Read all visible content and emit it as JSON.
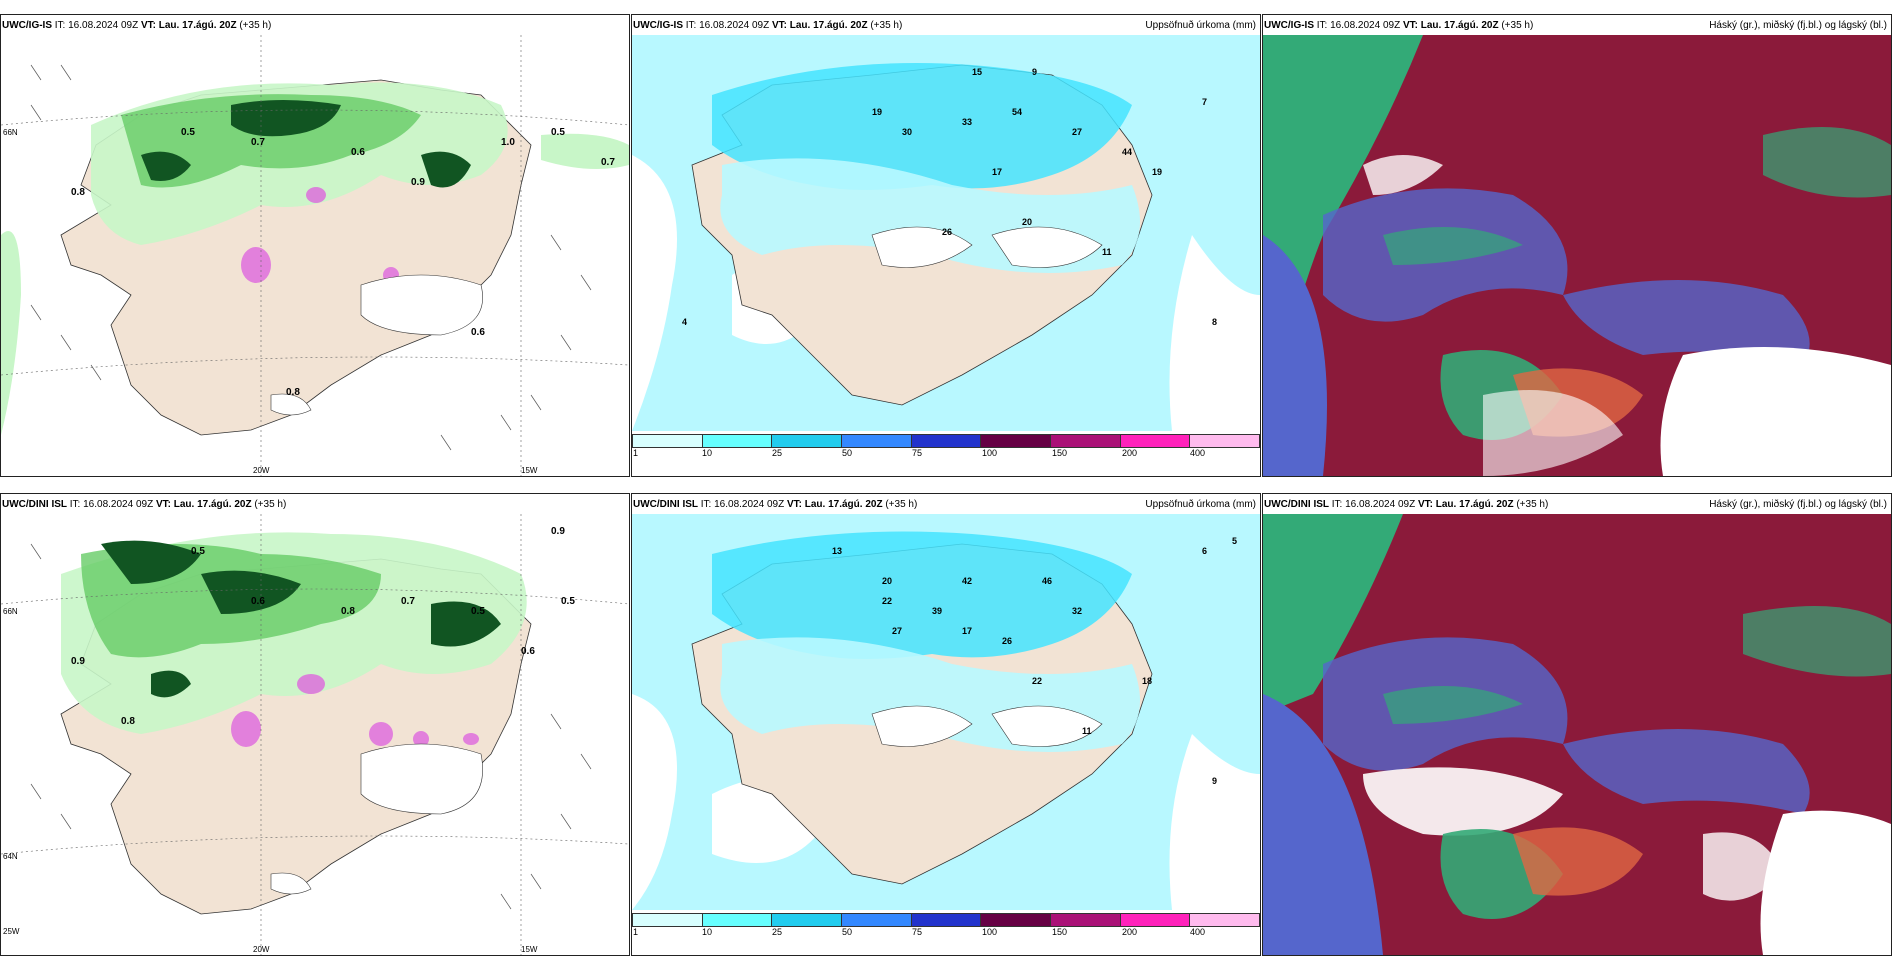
{
  "panels": [
    {
      "model": "UWC/IG-IS",
      "it": "16.08.2024 09Z",
      "vt": "Lau. 17.ágú. 20Z",
      "lead": "(+35 h)",
      "title": ""
    },
    {
      "model": "UWC/IG-IS",
      "it": "16.08.2024 09Z",
      "vt": "Lau. 17.ágú. 20Z",
      "lead": "(+35 h)",
      "title": "Uppsöfnuð úrkoma (mm)"
    },
    {
      "model": "UWC/IG-IS",
      "it": "16.08.2024 09Z",
      "vt": "Lau. 17.ágú. 20Z",
      "lead": "(+35 h)",
      "title": "Háský (gr.), miðský (fj.bl.) og lágský (bl.)"
    },
    {
      "model": "UWC/DINI ISL",
      "it": "16.08.2024 09Z",
      "vt": "Lau. 17.ágú. 20Z",
      "lead": "(+35 h)",
      "title": ""
    },
    {
      "model": "UWC/DINI ISL",
      "it": "16.08.2024 09Z",
      "vt": "Lau. 17.ágú. 20Z",
      "lead": "(+35 h)",
      "title": "Uppsöfnuð úrkoma (mm)"
    },
    {
      "model": "UWC/DINI ISL",
      "it": "16.08.2024 09Z",
      "vt": "Lau. 17.ágú. 20Z",
      "lead": "(+35 h)",
      "title": "Háský (gr.), miðský (fj.bl.) og lágský (bl.)"
    }
  ],
  "labels": {
    "it": "IT:",
    "vt": "VT:"
  },
  "axis": {
    "lon20": "20W",
    "lon15": "15W",
    "lat66": "66N",
    "lat64": "64N",
    "lon25": "25W"
  },
  "colorbar": {
    "ticks": [
      "1",
      "10",
      "25",
      "50",
      "75",
      "100",
      "150",
      "200",
      "400"
    ],
    "colors": [
      "#d8ffff",
      "#66ffff",
      "#22ccee",
      "#3388ff",
      "#2233cc",
      "#660044",
      "#aa1177",
      "#ff22bb",
      "#ffbbee"
    ]
  },
  "colors": {
    "land": "#f2e3d4",
    "sea": "#ffffff",
    "precip_light": "#c8f6c8",
    "precip_mid": "#66cc66",
    "precip_dark": "#115522",
    "snow": "#dd66dd",
    "rain_light": "#b8f8ff",
    "rain_mid": "#44e4ff",
    "cloud_high": "#8b1a3a",
    "cloud_mid": "#5566cc",
    "cloud_low": "#33aa77"
  },
  "precip_values_top": [
    "0.8",
    "0.5",
    "0.7",
    "0.6",
    "0.9",
    "1.0",
    "0.5",
    "0.6",
    "0.7",
    "0.8"
  ],
  "precip_values_bottom": [
    "0.9",
    "0.5",
    "0.6",
    "0.8",
    "0.7",
    "0.5",
    "0.9",
    "0.6",
    "0.5",
    "0.8"
  ],
  "accum_values_top": [
    "15",
    "9",
    "19",
    "30",
    "33",
    "54",
    "27",
    "44",
    "19",
    "17",
    "26",
    "20",
    "11",
    "8",
    "7",
    "4"
  ],
  "accum_values_bottom": [
    "13",
    "20",
    "22",
    "39",
    "27",
    "42",
    "46",
    "32",
    "26",
    "17",
    "22",
    "18",
    "11",
    "9",
    "6",
    "5"
  ]
}
